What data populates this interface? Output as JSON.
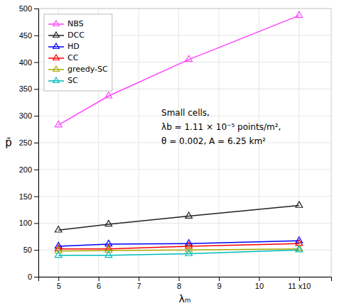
{
  "chart_data": {
    "type": "line",
    "x": [
      5,
      6.25,
      8.25,
      11
    ],
    "series": [
      {
        "name": "NBS",
        "color": "#ff44ff",
        "values": [
          283,
          337,
          405,
          487
        ]
      },
      {
        "name": "DCC",
        "color": "#222222",
        "values": [
          87,
          98,
          113,
          133
        ]
      },
      {
        "name": "HD",
        "color": "#0000ff",
        "values": [
          57,
          61,
          62,
          67
        ]
      },
      {
        "name": "CC",
        "color": "#ff0000",
        "values": [
          52,
          52,
          57,
          62
        ]
      },
      {
        "name": "greedy-SC",
        "color": "#aaaa00",
        "values": [
          48,
          49,
          50,
          52
        ]
      },
      {
        "name": "SC",
        "color": "#00bbbb",
        "values": [
          40,
          40,
          43,
          50
        ]
      }
    ],
    "marker": "triangle",
    "line_style": "solid",
    "x_label": "λₘ",
    "y_label": "p̄",
    "annotations": [
      "Small cells,",
      "λb = 1.11 × 10⁻⁵ points/m²,",
      "θ = 0.002, A = 6.25 km²"
    ],
    "xlim": [
      4.5,
      11.8
    ],
    "ylim": [
      0,
      500
    ],
    "xticks": [
      5,
      6,
      7,
      8,
      9,
      10,
      {
        "value": 11,
        "label": "11 x10"
      }
    ],
    "yticks": [
      0,
      50,
      100,
      150,
      200,
      250,
      300,
      350,
      400,
      450,
      500
    ],
    "grid": true,
    "legend": "upper left"
  }
}
